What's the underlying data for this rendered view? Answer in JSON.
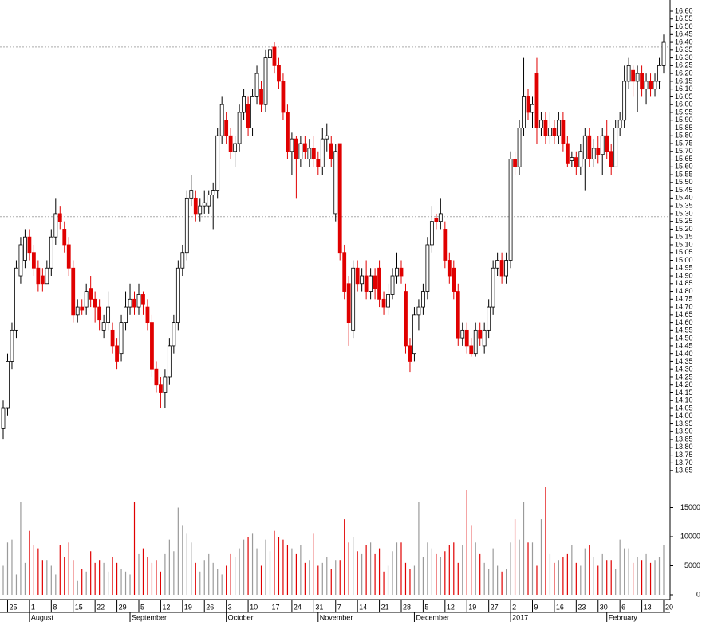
{
  "chart_data": {
    "type": "candlestick",
    "categories": [
      null,
      "25",
      null,
      null,
      null,
      null,
      "1",
      null,
      null,
      null,
      null,
      "8",
      null,
      null,
      null,
      null,
      "15",
      null,
      null,
      null,
      null,
      "22",
      null,
      null,
      null,
      null,
      "29",
      null,
      null,
      null,
      null,
      "5",
      null,
      null,
      null,
      null,
      "12",
      null,
      null,
      null,
      null,
      "19",
      null,
      null,
      null,
      null,
      "26",
      null,
      null,
      null,
      null,
      "3",
      null,
      null,
      null,
      null,
      "10",
      null,
      null,
      null,
      null,
      "17",
      null,
      null,
      null,
      null,
      "24",
      null,
      null,
      null,
      null,
      "31",
      null,
      null,
      null,
      null,
      "7",
      null,
      null,
      null,
      null,
      "14",
      null,
      null,
      null,
      null,
      "21",
      null,
      null,
      null,
      null,
      "28",
      null,
      null,
      null,
      null,
      "5",
      null,
      null,
      null,
      null,
      "12",
      null,
      null,
      null,
      null,
      "19",
      null,
      null,
      null,
      null,
      "27",
      null,
      null,
      null,
      null,
      "2",
      null,
      null,
      null,
      null,
      "9",
      null,
      null,
      null,
      null,
      "16",
      null,
      null,
      null,
      null,
      "23",
      null,
      null,
      null,
      null,
      "30",
      null,
      null,
      null,
      null,
      "6",
      null,
      null,
      null,
      null,
      "13",
      null,
      null,
      null,
      null,
      "20"
    ],
    "month_labels": [
      null,
      null,
      null,
      null,
      null,
      null,
      "August",
      null,
      null,
      null,
      null,
      null,
      null,
      null,
      null,
      null,
      null,
      null,
      null,
      null,
      null,
      null,
      null,
      null,
      null,
      null,
      null,
      null,
      null,
      "September",
      null,
      null,
      null,
      null,
      null,
      null,
      null,
      null,
      null,
      null,
      null,
      null,
      null,
      null,
      null,
      null,
      null,
      null,
      null,
      null,
      null,
      "October",
      null,
      null,
      null,
      null,
      null,
      null,
      null,
      null,
      null,
      null,
      null,
      null,
      null,
      null,
      null,
      null,
      null,
      null,
      null,
      null,
      "November",
      null,
      null,
      null,
      null,
      null,
      null,
      null,
      null,
      null,
      null,
      null,
      null,
      null,
      null,
      null,
      null,
      null,
      null,
      null,
      null,
      null,
      "December",
      null,
      null,
      null,
      null,
      null,
      null,
      null,
      null,
      null,
      null,
      null,
      null,
      null,
      null,
      null,
      null,
      null,
      null,
      null,
      null,
      null,
      "2017",
      null,
      null,
      null,
      null,
      null,
      null,
      null,
      null,
      null,
      null,
      null,
      null,
      null,
      null,
      null,
      null,
      null,
      null,
      null,
      null,
      null,
      "February",
      null,
      null,
      null,
      null,
      null,
      null,
      null,
      null,
      null,
      null,
      null,
      null,
      null
    ],
    "open": [
      13.92,
      14.05,
      14.35,
      14.55,
      14.9,
      15.0,
      15.15,
      15.05,
      14.95,
      14.9,
      14.85,
      14.95,
      15.15,
      15.3,
      15.2,
      15.1,
      14.95,
      14.65,
      14.7,
      14.7,
      14.82,
      14.75,
      14.7,
      14.55,
      14.6,
      14.55,
      14.45,
      14.4,
      14.6,
      14.7,
      14.75,
      14.7,
      14.78,
      14.7,
      14.6,
      14.3,
      14.2,
      14.15,
      14.25,
      14.45,
      14.6,
      14.95,
      15.05,
      15.4,
      15.4,
      15.3,
      15.35,
      15.35,
      15.42,
      15.45,
      15.8,
      15.9,
      15.8,
      15.7,
      15.75,
      15.95,
      16.0,
      15.85,
      16.05,
      16.1,
      16.0,
      16.3,
      16.37,
      16.25,
      16.15,
      15.95,
      15.7,
      15.78,
      15.65,
      15.75,
      15.65,
      15.72,
      15.65,
      15.6,
      15.78,
      15.75,
      15.3,
      15.75,
      15.05,
      14.85,
      14.55,
      14.95,
      14.85,
      14.9,
      14.8,
      14.9,
      14.95,
      14.75,
      14.7,
      14.78,
      14.9,
      14.95,
      14.8,
      14.45,
      14.4,
      14.65,
      14.7,
      14.8,
      15.1,
      15.27,
      15.25,
      15.2,
      15.0,
      14.95,
      14.8,
      14.5,
      14.55,
      14.45,
      14.4,
      14.55,
      14.45,
      14.55,
      14.7,
      14.95,
      15.0,
      14.9,
      15.0,
      15.65,
      15.6,
      15.85,
      16.05,
      15.95,
      16.2,
      15.85,
      15.9,
      15.8,
      15.85,
      15.8,
      15.9,
      15.75,
      15.64,
      15.66,
      15.6,
      15.65,
      15.8,
      15.65,
      15.72,
      15.68,
      15.8,
      15.7,
      15.6,
      15.85,
      15.9,
      16.15,
      16.22,
      16.15,
      16.2,
      16.1,
      16.15,
      16.1,
      16.15,
      16.25
    ],
    "high": [
      14.1,
      14.4,
      14.6,
      15.0,
      15.15,
      15.2,
      15.2,
      15.1,
      15.0,
      14.95,
      15.0,
      15.2,
      15.4,
      15.35,
      15.25,
      15.15,
      15.0,
      14.75,
      14.75,
      14.85,
      14.9,
      14.8,
      14.75,
      14.65,
      14.8,
      14.6,
      14.5,
      14.65,
      14.8,
      14.85,
      14.8,
      14.85,
      14.8,
      14.75,
      14.65,
      14.35,
      14.25,
      14.3,
      14.5,
      14.65,
      15.0,
      15.1,
      15.45,
      15.55,
      15.45,
      15.4,
      15.45,
      15.45,
      15.5,
      15.85,
      16.05,
      15.95,
      15.85,
      15.8,
      16.0,
      16.1,
      16.05,
      16.1,
      16.25,
      16.15,
      16.35,
      16.4,
      16.4,
      16.3,
      16.2,
      16.0,
      15.82,
      15.8,
      15.8,
      15.8,
      15.78,
      15.8,
      15.7,
      15.85,
      15.88,
      15.8,
      15.75,
      15.75,
      15.1,
      14.9,
      15.0,
      15.0,
      14.95,
      15.0,
      14.95,
      14.95,
      15.0,
      14.8,
      14.85,
      14.95,
      15.05,
      15.0,
      14.85,
      14.5,
      14.7,
      14.75,
      14.85,
      15.15,
      15.35,
      15.3,
      15.4,
      15.25,
      15.05,
      15.0,
      14.85,
      14.6,
      14.6,
      14.5,
      14.6,
      14.6,
      14.6,
      14.75,
      15.0,
      15.05,
      15.05,
      15.05,
      15.7,
      15.7,
      15.9,
      16.3,
      16.1,
      16.05,
      16.3,
      15.95,
      15.95,
      15.95,
      15.9,
      15.95,
      15.95,
      15.8,
      15.7,
      15.7,
      15.75,
      15.85,
      15.85,
      15.78,
      15.8,
      15.85,
      15.9,
      15.75,
      15.9,
      15.95,
      16.25,
      16.3,
      16.25,
      16.25,
      16.25,
      16.2,
      16.2,
      16.2,
      16.3,
      16.45
    ],
    "low": [
      13.85,
      14.0,
      14.3,
      14.5,
      14.85,
      14.95,
      15.0,
      14.9,
      14.8,
      14.8,
      14.85,
      14.9,
      15.1,
      15.2,
      15.05,
      14.9,
      14.6,
      14.6,
      14.65,
      14.65,
      14.7,
      14.6,
      14.55,
      14.5,
      14.55,
      14.4,
      14.3,
      14.35,
      14.55,
      14.65,
      14.65,
      14.65,
      14.65,
      14.55,
      14.25,
      14.15,
      14.05,
      14.05,
      14.2,
      14.4,
      14.55,
      14.9,
      15.0,
      15.35,
      15.25,
      15.25,
      15.3,
      15.3,
      15.2,
      15.4,
      15.75,
      15.75,
      15.65,
      15.6,
      15.7,
      15.9,
      15.8,
      15.8,
      16.0,
      15.95,
      15.95,
      16.25,
      16.2,
      16.1,
      15.9,
      15.65,
      15.55,
      15.4,
      15.6,
      15.65,
      15.6,
      15.6,
      15.55,
      15.55,
      15.7,
      15.6,
      15.25,
      15.0,
      14.75,
      14.45,
      14.5,
      14.8,
      14.8,
      14.75,
      14.75,
      14.75,
      14.7,
      14.65,
      14.65,
      14.75,
      14.85,
      14.85,
      14.4,
      14.28,
      14.35,
      14.55,
      14.65,
      14.75,
      15.05,
      15.2,
      15.2,
      14.95,
      14.85,
      14.75,
      14.45,
      14.45,
      14.4,
      14.38,
      14.38,
      14.45,
      14.4,
      14.5,
      14.65,
      14.9,
      14.85,
      14.85,
      14.95,
      15.55,
      15.55,
      15.8,
      15.9,
      15.85,
      15.75,
      15.8,
      15.75,
      15.75,
      15.75,
      15.75,
      15.7,
      15.6,
      15.6,
      15.55,
      15.55,
      15.45,
      15.6,
      15.6,
      15.62,
      15.55,
      15.65,
      15.55,
      15.6,
      15.8,
      15.85,
      16.1,
      16.05,
      15.95,
      16.05,
      16.0,
      16.05,
      16.05,
      16.1,
      16.2
    ],
    "close": [
      14.05,
      14.35,
      14.55,
      14.95,
      15.1,
      15.15,
      15.05,
      14.95,
      14.85,
      14.85,
      14.95,
      15.15,
      15.3,
      15.25,
      15.1,
      14.95,
      14.65,
      14.7,
      14.68,
      14.8,
      14.75,
      14.7,
      14.62,
      14.6,
      14.7,
      14.45,
      14.35,
      14.6,
      14.7,
      14.75,
      14.7,
      14.78,
      14.72,
      14.6,
      14.3,
      14.2,
      14.15,
      14.25,
      14.45,
      14.6,
      14.95,
      15.05,
      15.4,
      15.45,
      15.3,
      15.35,
      15.37,
      15.42,
      15.45,
      15.8,
      16.0,
      15.8,
      15.7,
      15.75,
      15.95,
      16.05,
      15.85,
      16.05,
      16.2,
      16.0,
      16.3,
      16.35,
      16.25,
      16.15,
      15.95,
      15.7,
      15.78,
      15.65,
      15.75,
      15.7,
      15.72,
      15.65,
      15.6,
      15.78,
      15.8,
      15.65,
      15.7,
      15.05,
      14.8,
      14.6,
      14.95,
      14.85,
      14.9,
      14.8,
      14.9,
      14.82,
      14.75,
      14.7,
      14.78,
      14.9,
      14.95,
      14.9,
      14.45,
      14.35,
      14.65,
      14.7,
      14.8,
      15.1,
      15.25,
      15.25,
      15.3,
      15.0,
      14.9,
      14.8,
      14.5,
      14.55,
      14.45,
      14.4,
      14.55,
      14.5,
      14.55,
      14.7,
      14.95,
      15.0,
      14.9,
      15.0,
      15.65,
      15.6,
      15.85,
      16.05,
      15.95,
      16.0,
      15.85,
      15.9,
      15.8,
      15.85,
      15.8,
      15.9,
      15.75,
      15.62,
      15.66,
      15.6,
      15.7,
      15.8,
      15.65,
      15.72,
      15.68,
      15.8,
      15.7,
      15.6,
      15.85,
      15.9,
      16.15,
      16.25,
      16.15,
      16.2,
      16.1,
      16.15,
      16.1,
      16.15,
      16.25,
      16.4
    ],
    "volume": [
      5000,
      9000,
      9500,
      3500,
      16000,
      5500,
      11000,
      8500,
      8000,
      6000,
      6000,
      5000,
      3500,
      8500,
      6500,
      9000,
      6000,
      2500,
      4500,
      4000,
      7500,
      5500,
      6000,
      5500,
      4000,
      6500,
      5500,
      4500,
      4000,
      3500,
      16000,
      7000,
      8000,
      6500,
      5500,
      6000,
      4000,
      7000,
      9500,
      7500,
      15000,
      12000,
      10500,
      9000,
      5500,
      4000,
      6000,
      7000,
      5500,
      4500,
      3500,
      5000,
      7000,
      6500,
      8000,
      9500,
      10000,
      10500,
      8000,
      5000,
      9500,
      7500,
      11000,
      10000,
      9500,
      8500,
      8000,
      7000,
      8500,
      5500,
      6000,
      10500,
      5000,
      5500,
      6500,
      4500,
      6000,
      6000,
      13000,
      9000,
      10000,
      7500,
      7000,
      8500,
      9000,
      7000,
      8000,
      4000,
      5000,
      7500,
      9000,
      9000,
      5500,
      4500,
      5000,
      16000,
      6500,
      9000,
      8000,
      7000,
      6500,
      7500,
      8500,
      9000,
      5500,
      8500,
      18000,
      12000,
      9000,
      7000,
      5500,
      4500,
      8000,
      5000,
      4000,
      4500,
      9000,
      13000,
      9500,
      16000,
      9000,
      9000,
      5000,
      13000,
      18500,
      7000,
      5500,
      6000,
      6500,
      7000,
      8500,
      5500,
      5000,
      8000,
      8500,
      6500,
      5000,
      7000,
      6000,
      6000,
      4500,
      9500,
      8000,
      8000,
      5500,
      6500,
      6000,
      7000,
      5500,
      6000,
      6500,
      8500
    ],
    "ylim": [
      13.62,
      16.64
    ],
    "yticks": [
      13.65,
      {
        "value": 13.7,
        "label": "13.70"
      },
      13.75,
      {
        "value": 13.8,
        "label": "13.80"
      },
      13.85,
      {
        "value": 13.9,
        "label": "13.90"
      },
      13.95,
      {
        "value": 14,
        "label": "14.00"
      },
      14.05,
      {
        "value": 14.1,
        "label": "14.10"
      },
      14.15,
      {
        "value": 14.2,
        "label": "14.20"
      },
      14.25,
      {
        "value": 14.3,
        "label": "14.30"
      },
      14.35,
      {
        "value": 14.4,
        "label": "14.40"
      },
      14.45,
      {
        "value": 14.5,
        "label": "14.50"
      },
      14.55,
      {
        "value": 14.6,
        "label": "14.60"
      },
      14.65,
      {
        "value": 14.7,
        "label": "14.70"
      },
      14.75,
      {
        "value": 14.8,
        "label": "14.80"
      },
      14.85,
      {
        "value": 14.9,
        "label": "14.90"
      },
      14.95,
      {
        "value": 15,
        "label": "15.00"
      },
      15.05,
      {
        "value": 15.1,
        "label": "15.10"
      },
      15.15,
      {
        "value": 15.2,
        "label": "15.20"
      },
      15.25,
      {
        "value": 15.3,
        "label": "15.30"
      },
      15.35,
      {
        "value": 15.4,
        "label": "15.40"
      },
      15.45,
      {
        "value": 15.5,
        "label": "15.50"
      },
      15.55,
      {
        "value": 15.6,
        "label": "15.60"
      },
      15.65,
      {
        "value": 15.7,
        "label": "15.70"
      },
      15.75,
      {
        "value": 15.8,
        "label": "15.80"
      },
      15.85,
      {
        "value": 15.9,
        "label": "15.90"
      },
      15.95,
      {
        "value": 16,
        "label": "16.00"
      },
      16.05,
      {
        "value": 16.1,
        "label": "16.10"
      },
      16.15,
      {
        "value": 16.2,
        "label": "16.20"
      },
      16.25,
      {
        "value": 16.3,
        "label": "16.30"
      },
      16.35,
      {
        "value": 16.4,
        "label": "16.40"
      },
      16.45,
      {
        "value": 16.5,
        "label": "16.50"
      },
      16.55,
      {
        "value": 16.6,
        "label": "16.60"
      }
    ],
    "volume_ylim": [
      0,
      20000
    ],
    "volume_yticks": [
      0,
      5000,
      10000,
      15000
    ],
    "reference_lines": [
      16.37,
      15.28
    ],
    "up_color": "#ffffff",
    "down_color": "#e00000",
    "outline_color": "#000000",
    "volume_up_color": "#9a9a9a"
  }
}
